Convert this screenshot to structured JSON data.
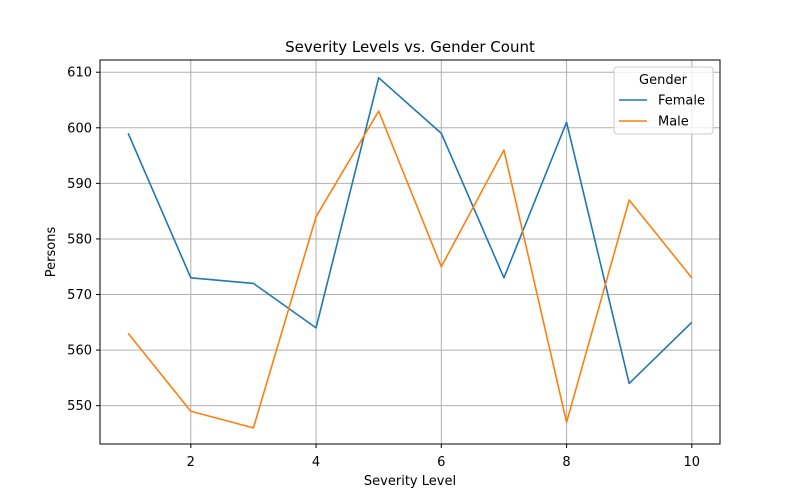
{
  "chart_data": {
    "type": "line",
    "title": "Severity Levels vs. Gender Count",
    "xlabel": "Severity Level",
    "ylabel": "Persons",
    "x": [
      1,
      2,
      3,
      4,
      5,
      6,
      7,
      8,
      9,
      10
    ],
    "xlim": [
      0.55,
      10.45
    ],
    "ylim": [
      543.1,
      612.2
    ],
    "xticks": [
      2,
      4,
      6,
      8,
      10
    ],
    "yticks": [
      550,
      560,
      570,
      580,
      590,
      600,
      610
    ],
    "grid": true,
    "legend": {
      "title": "Gender",
      "placement": "top-right"
    },
    "series": [
      {
        "name": "Female",
        "color": "#1f77b4",
        "values": [
          599,
          573,
          572,
          564,
          609,
          599,
          573,
          601,
          554,
          565
        ]
      },
      {
        "name": "Male",
        "color": "#ff7f0e",
        "values": [
          563,
          549,
          546,
          584,
          603,
          575,
          596,
          547,
          587,
          573
        ]
      }
    ]
  }
}
